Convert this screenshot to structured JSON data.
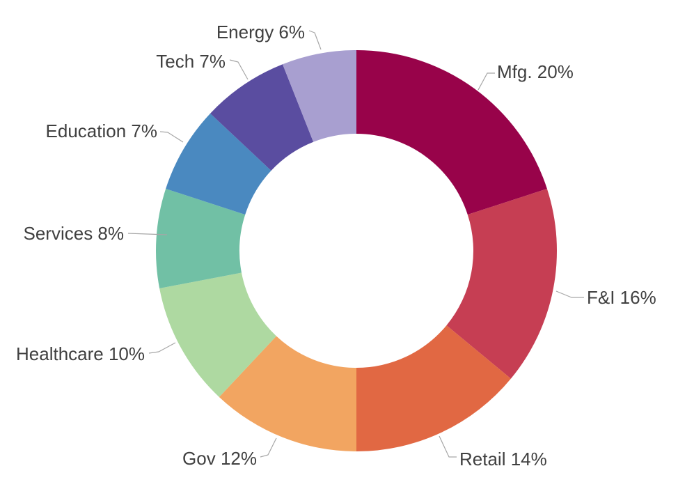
{
  "page": {
    "background_color": "#ffffff",
    "title": ""
  },
  "chart_data": {
    "type": "pie",
    "subtype": "donut",
    "title": "",
    "unit": "%",
    "direction": "clockwise",
    "start_angle_deg": 0,
    "donut_hole_ratio": 0.583,
    "legend": "none",
    "categories": [
      "Mfg.",
      "F&I",
      "Retail",
      "Gov",
      "Healthcare",
      "Services",
      "Education",
      "Tech",
      "Energy"
    ],
    "values": [
      20,
      16,
      14,
      12,
      10,
      8,
      7,
      7,
      6
    ],
    "labels": [
      "Mfg. 20%",
      "F&I 16%",
      "Retail 14%",
      "Gov 12%",
      "Healthcare 10%",
      "Services 8%",
      "Education 7%",
      "Tech 7%",
      "Energy 6%"
    ],
    "colors": [
      "#98034a",
      "#c63e53",
      "#e16843",
      "#f2a561",
      "#aed9a1",
      "#71c0a5",
      "#4a89c0",
      "#5a4da0",
      "#a89fd0"
    ],
    "label_text_color": "#404040",
    "leader_line_color": "#a6a6a6"
  }
}
